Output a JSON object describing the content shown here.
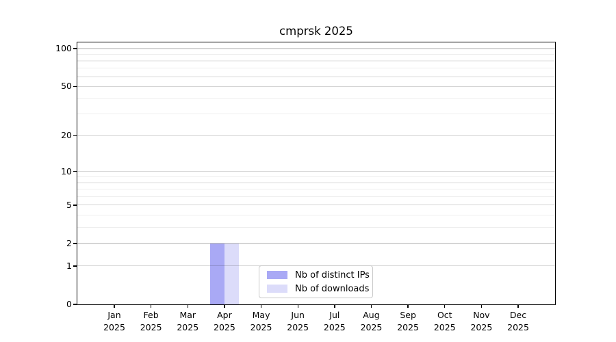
{
  "title": "cmprsk 2025",
  "chart_data": {
    "type": "bar",
    "title": "cmprsk 2025",
    "categories": [
      "Jan",
      "Feb",
      "Mar",
      "Apr",
      "May",
      "Jun",
      "Jul",
      "Aug",
      "Sep",
      "Oct",
      "Nov",
      "Dec"
    ],
    "category_year": "2025",
    "series": [
      {
        "name": "Nb of distinct IPs",
        "color": "#a9a9f5",
        "values": [
          0,
          0,
          0,
          2,
          0,
          0,
          0,
          0,
          0,
          0,
          0,
          0
        ]
      },
      {
        "name": "Nb of downloads",
        "color": "#dcdcfa",
        "values": [
          0,
          0,
          0,
          2,
          0,
          0,
          0,
          0,
          0,
          0,
          0,
          0
        ]
      }
    ],
    "xlabel": "",
    "ylabel": "",
    "yscale": "log1p",
    "ylim": [
      0,
      112
    ],
    "yticks_major": [
      0,
      1,
      2,
      5,
      10,
      20,
      50,
      100
    ],
    "yticks_minor": [
      3,
      4,
      6,
      7,
      8,
      9,
      30,
      40,
      60,
      70,
      80,
      90
    ],
    "grid": "horizontal",
    "legend_position": "bottom-center"
  },
  "colors": {
    "bar_distinct_ips": "#a9a9f5",
    "bar_downloads": "#dcdcfa",
    "axis": "#000000",
    "legend_border": "#c9c9c9",
    "background": "#ffffff"
  }
}
